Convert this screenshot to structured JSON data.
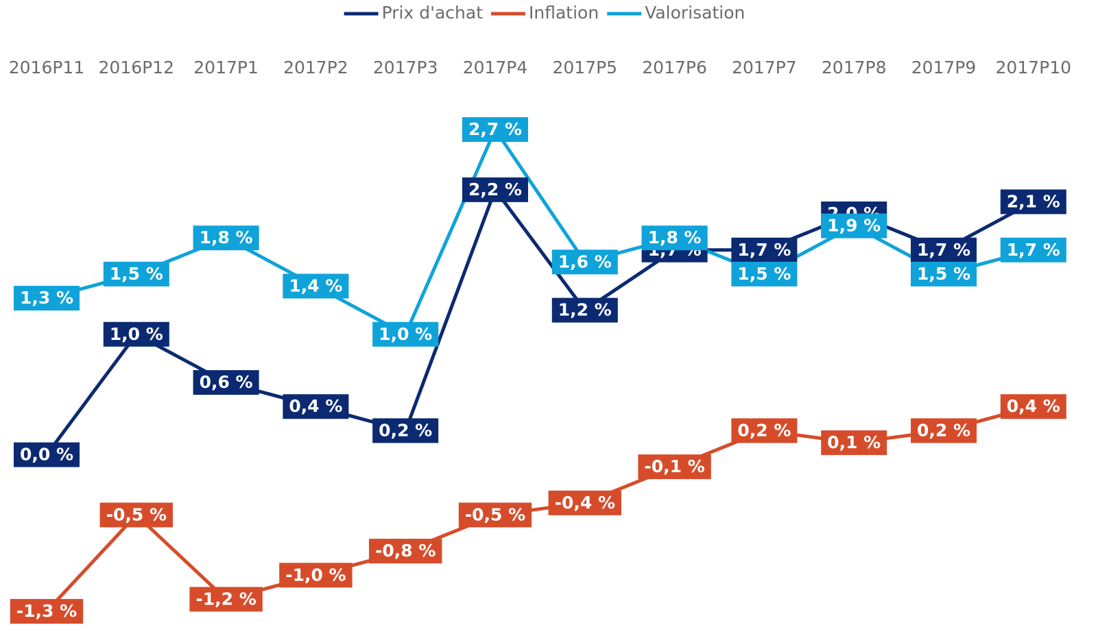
{
  "chart_data": {
    "type": "line",
    "categories": [
      "2016P11",
      "2016P12",
      "2017P1",
      "2017P2",
      "2017P3",
      "2017P4",
      "2017P5",
      "2017P6",
      "2017P7",
      "2017P8",
      "2017P9",
      "2017P10"
    ],
    "series": [
      {
        "name": "Prix d'achat",
        "color": "#0c2a72",
        "values": [
          0.0,
          1.0,
          0.6,
          0.4,
          0.2,
          2.2,
          1.2,
          1.7,
          1.7,
          2.0,
          1.7,
          2.1
        ],
        "value_labels": [
          "0,0 %",
          "1,0 %",
          "0,6 %",
          "0,4 %",
          "0,2 %",
          "2,2 %",
          "1,2 %",
          "1,7 %",
          "1,7 %",
          "2,0 %",
          "1,7 %",
          "2,1 %"
        ]
      },
      {
        "name": "Inflation",
        "color": "#d64c2b",
        "values": [
          -1.3,
          -0.5,
          -1.2,
          -1.0,
          -0.8,
          -0.5,
          -0.4,
          -0.1,
          0.2,
          0.1,
          0.2,
          0.4
        ],
        "value_labels": [
          "-1,3 %",
          "-0,5 %",
          "-1,2 %",
          "-1,0 %",
          "-0,8 %",
          "-0,5 %",
          "-0,4 %",
          "-0,1 %",
          "0,2 %",
          "0,1 %",
          "0,2 %",
          "0,4 %"
        ]
      },
      {
        "name": "Valorisation",
        "color": "#0fa3da",
        "values": [
          1.3,
          1.5,
          1.8,
          1.4,
          1.0,
          2.7,
          1.6,
          1.8,
          1.5,
          1.9,
          1.5,
          1.7
        ],
        "value_labels": [
          "1,3 %",
          "1,5 %",
          "1,8 %",
          "1,4 %",
          "1,0 %",
          "2,7 %",
          "1,6 %",
          "1,8 %",
          "1,5 %",
          "1,9 %",
          "1,5 %",
          "1,7 %"
        ]
      }
    ],
    "legend": "top"
  }
}
